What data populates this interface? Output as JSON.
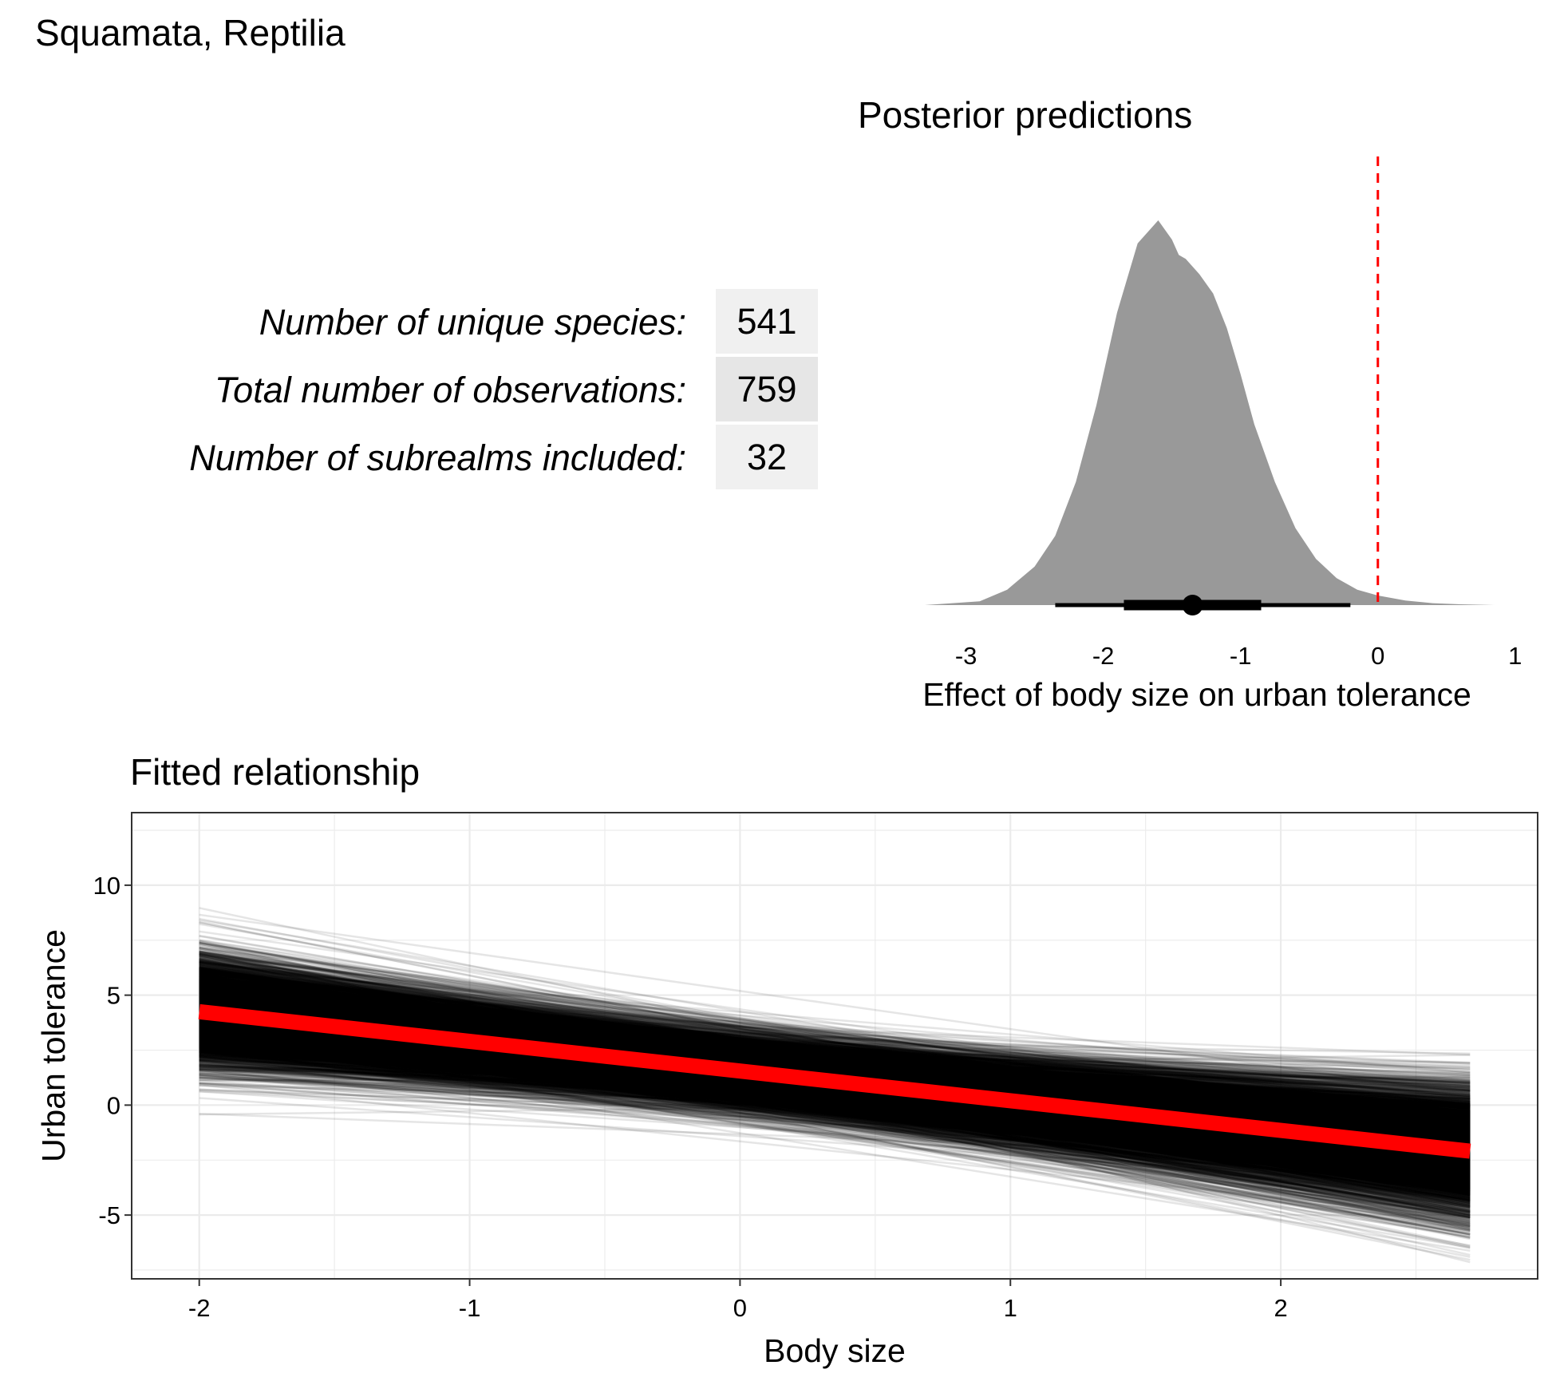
{
  "page_title": "Squamata, Reptilia",
  "stats": [
    {
      "label": "Number of unique species:",
      "value": "541"
    },
    {
      "label": "Total number of observations:",
      "value": "759"
    },
    {
      "label": "Number of subrealms included:",
      "value": "32"
    }
  ],
  "colors": {
    "density_fill": "#999999",
    "reference_line": "#ff0000",
    "fitted_line": "#ff0000",
    "draw_lines": "#000000",
    "table_cell": "#f0f0f0",
    "table_cell_alt": "#e6e6e6"
  },
  "chart_data": [
    {
      "type": "area",
      "title": "Posterior predictions",
      "xlabel": "Effect of body size on urban tolerance",
      "ylabel": "",
      "xlim": [
        -3.3,
        0.85
      ],
      "xticks": [
        -3,
        -2,
        -1,
        0,
        1
      ],
      "grid": false,
      "reference_line_x": 0,
      "density": {
        "x": [
          -3.3,
          -2.9,
          -2.7,
          -2.5,
          -2.35,
          -2.2,
          -2.05,
          -1.9,
          -1.75,
          -1.6,
          -1.5,
          -1.45,
          -1.4,
          -1.3,
          -1.2,
          -1.1,
          -1.0,
          -0.9,
          -0.75,
          -0.6,
          -0.45,
          -0.3,
          -0.15,
          0.0,
          0.2,
          0.4,
          0.6,
          0.85
        ],
        "y": [
          0.0,
          0.01,
          0.04,
          0.1,
          0.18,
          0.32,
          0.52,
          0.76,
          0.94,
          1.0,
          0.95,
          0.91,
          0.9,
          0.86,
          0.81,
          0.72,
          0.6,
          0.47,
          0.32,
          0.2,
          0.12,
          0.07,
          0.04,
          0.025,
          0.012,
          0.005,
          0.002,
          0.0
        ]
      },
      "point_interval": {
        "point": -1.35,
        "inner": [
          -1.85,
          -0.85
        ],
        "outer": [
          -2.35,
          -0.2
        ]
      }
    },
    {
      "type": "line",
      "title": "Fitted relationship",
      "xlabel": "Body size",
      "ylabel": "Urban tolerance",
      "xlim": [
        -2.25,
        2.95
      ],
      "ylim": [
        -7.9,
        13.3
      ],
      "xticks": [
        -2,
        -1,
        0,
        1,
        2
      ],
      "yticks": [
        -5,
        0,
        5,
        10
      ],
      "grid": true,
      "x_range": [
        -2,
        2.7
      ],
      "fitted_line": {
        "intercept": 1.55,
        "slope": -1.35
      },
      "posterior_draws": {
        "n": 4000,
        "intercept_mean": 1.55,
        "intercept_sd": 0.85,
        "slope_mean": -1.35,
        "slope_sd": 0.42
      }
    }
  ]
}
